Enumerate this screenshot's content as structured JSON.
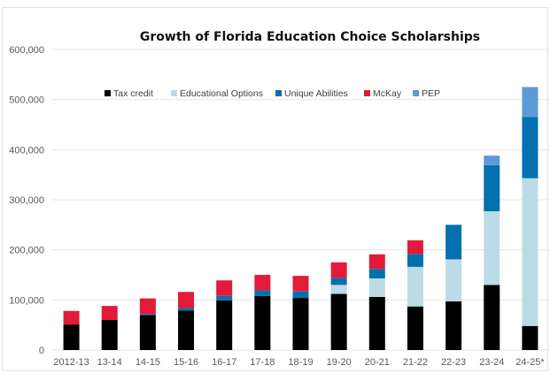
{
  "chart_data": {
    "type": "bar",
    "stacked": true,
    "title": "Growth of Florida Education Choice Scholarships",
    "xlabel": "",
    "ylabel": "",
    "ylim": [
      0,
      600000
    ],
    "yticks": [
      0,
      100000,
      200000,
      300000,
      400000,
      500000,
      600000
    ],
    "ytick_labels": [
      "0",
      "100,000",
      "200,000",
      "300,000",
      "400,000",
      "500,000",
      "600,000"
    ],
    "grid": true,
    "legend_position": "top-center",
    "categories": [
      "2012-13",
      "13-14",
      "14-15",
      "15-16",
      "16-17",
      "17-18",
      "18-19",
      "19-20",
      "20-21",
      "21-22",
      "22-23",
      "23-24",
      "24-25*"
    ],
    "series": [
      {
        "name": "Tax credit",
        "color": "#000000",
        "values": [
          51000,
          60000,
          70000,
          79000,
          99000,
          108000,
          104000,
          112000,
          106000,
          87000,
          97000,
          130000,
          48000
        ]
      },
      {
        "name": "Educational Options",
        "color": "#bcdbe6",
        "values": [
          0,
          0,
          0,
          0,
          0,
          0,
          0,
          18000,
          37000,
          79000,
          84000,
          147000,
          295000
        ]
      },
      {
        "name": "Unique Abilities",
        "color": "#0570b0",
        "values": [
          0,
          0,
          2000,
          5000,
          9000,
          11000,
          13000,
          14000,
          19000,
          26000,
          69000,
          92000,
          122000
        ]
      },
      {
        "name": "McKay",
        "color": "#e31a3a",
        "values": [
          27000,
          28000,
          31000,
          32000,
          31000,
          31000,
          31000,
          31000,
          29000,
          27000,
          0,
          0,
          0
        ]
      },
      {
        "name": "PEP",
        "color": "#5b9bd5",
        "values": [
          0,
          0,
          0,
          0,
          0,
          0,
          0,
          0,
          0,
          0,
          0,
          19000,
          60000
        ]
      }
    ]
  }
}
